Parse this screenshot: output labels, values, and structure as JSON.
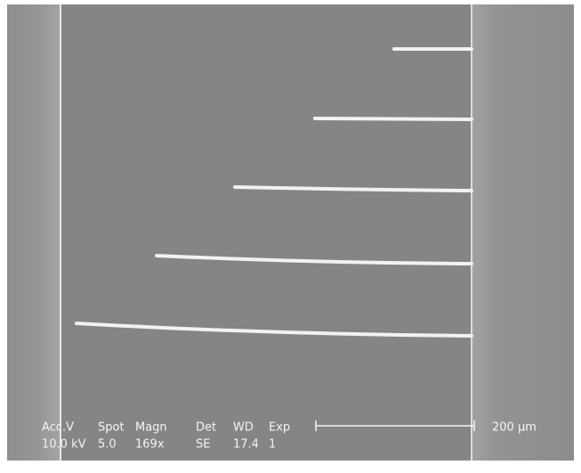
{
  "info_bar": {
    "labels": [
      "Acc.V",
      "Spot",
      "Magn",
      "Det",
      "WD",
      "Exp"
    ],
    "values": [
      "10.0 kV",
      "5.0",
      "169x",
      "SE",
      "17.4",
      "1"
    ]
  },
  "scale_bar": {
    "label": "200 µm"
  }
}
